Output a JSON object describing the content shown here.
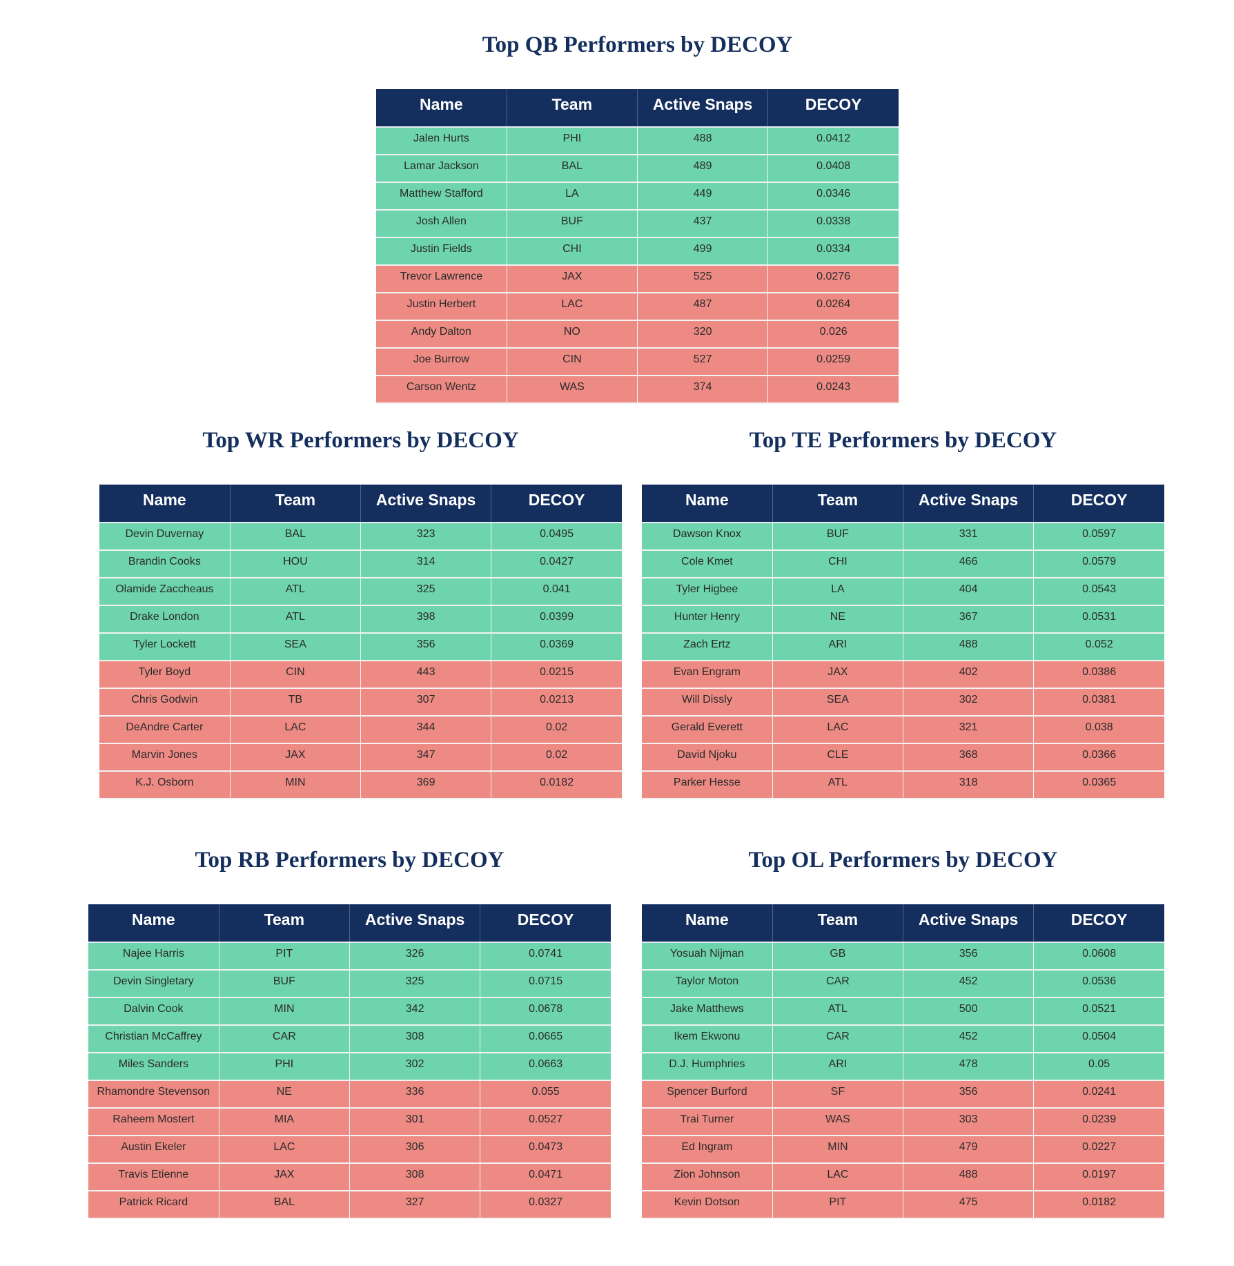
{
  "colors": {
    "header": "#142f5e",
    "top_row": "#6dd4ae",
    "bottom_row": "#ee8a84",
    "title": "#142f5e"
  },
  "chart_data": [
    {
      "type": "table",
      "id": "qb",
      "title": "Top QB Performers by DECOY",
      "columns": [
        "Name",
        "Team",
        "Active Snaps",
        "DECOY"
      ],
      "rows": [
        {
          "group": "top",
          "cells": [
            "Jalen Hurts",
            "PHI",
            "488",
            "0.0412"
          ]
        },
        {
          "group": "top",
          "cells": [
            "Lamar Jackson",
            "BAL",
            "489",
            "0.0408"
          ]
        },
        {
          "group": "top",
          "cells": [
            "Matthew Stafford",
            "LA",
            "449",
            "0.0346"
          ]
        },
        {
          "group": "top",
          "cells": [
            "Josh Allen",
            "BUF",
            "437",
            "0.0338"
          ]
        },
        {
          "group": "top",
          "cells": [
            "Justin Fields",
            "CHI",
            "499",
            "0.0334"
          ]
        },
        {
          "group": "bottom",
          "cells": [
            "Trevor Lawrence",
            "JAX",
            "525",
            "0.0276"
          ]
        },
        {
          "group": "bottom",
          "cells": [
            "Justin Herbert",
            "LAC",
            "487",
            "0.0264"
          ]
        },
        {
          "group": "bottom",
          "cells": [
            "Andy Dalton",
            "NO",
            "320",
            "0.026"
          ]
        },
        {
          "group": "bottom",
          "cells": [
            "Joe Burrow",
            "CIN",
            "527",
            "0.0259"
          ]
        },
        {
          "group": "bottom",
          "cells": [
            "Carson Wentz",
            "WAS",
            "374",
            "0.0243"
          ]
        }
      ]
    },
    {
      "type": "table",
      "id": "wr",
      "title": "Top WR Performers by DECOY",
      "columns": [
        "Name",
        "Team",
        "Active Snaps",
        "DECOY"
      ],
      "rows": [
        {
          "group": "top",
          "cells": [
            "Devin Duvernay",
            "BAL",
            "323",
            "0.0495"
          ]
        },
        {
          "group": "top",
          "cells": [
            "Brandin Cooks",
            "HOU",
            "314",
            "0.0427"
          ]
        },
        {
          "group": "top",
          "cells": [
            "Olamide Zaccheaus",
            "ATL",
            "325",
            "0.041"
          ]
        },
        {
          "group": "top",
          "cells": [
            "Drake London",
            "ATL",
            "398",
            "0.0399"
          ]
        },
        {
          "group": "top",
          "cells": [
            "Tyler Lockett",
            "SEA",
            "356",
            "0.0369"
          ]
        },
        {
          "group": "bottom",
          "cells": [
            "Tyler Boyd",
            "CIN",
            "443",
            "0.0215"
          ]
        },
        {
          "group": "bottom",
          "cells": [
            "Chris Godwin",
            "TB",
            "307",
            "0.0213"
          ]
        },
        {
          "group": "bottom",
          "cells": [
            "DeAndre Carter",
            "LAC",
            "344",
            "0.02"
          ]
        },
        {
          "group": "bottom",
          "cells": [
            "Marvin Jones",
            "JAX",
            "347",
            "0.02"
          ]
        },
        {
          "group": "bottom",
          "cells": [
            "K.J. Osborn",
            "MIN",
            "369",
            "0.0182"
          ]
        }
      ]
    },
    {
      "type": "table",
      "id": "te",
      "title": "Top TE Performers by DECOY",
      "columns": [
        "Name",
        "Team",
        "Active Snaps",
        "DECOY"
      ],
      "rows": [
        {
          "group": "top",
          "cells": [
            "Dawson Knox",
            "BUF",
            "331",
            "0.0597"
          ]
        },
        {
          "group": "top",
          "cells": [
            "Cole Kmet",
            "CHI",
            "466",
            "0.0579"
          ]
        },
        {
          "group": "top",
          "cells": [
            "Tyler Higbee",
            "LA",
            "404",
            "0.0543"
          ]
        },
        {
          "group": "top",
          "cells": [
            "Hunter Henry",
            "NE",
            "367",
            "0.0531"
          ]
        },
        {
          "group": "top",
          "cells": [
            "Zach Ertz",
            "ARI",
            "488",
            "0.052"
          ]
        },
        {
          "group": "bottom",
          "cells": [
            "Evan Engram",
            "JAX",
            "402",
            "0.0386"
          ]
        },
        {
          "group": "bottom",
          "cells": [
            "Will Dissly",
            "SEA",
            "302",
            "0.0381"
          ]
        },
        {
          "group": "bottom",
          "cells": [
            "Gerald Everett",
            "LAC",
            "321",
            "0.038"
          ]
        },
        {
          "group": "bottom",
          "cells": [
            "David Njoku",
            "CLE",
            "368",
            "0.0366"
          ]
        },
        {
          "group": "bottom",
          "cells": [
            "Parker Hesse",
            "ATL",
            "318",
            "0.0365"
          ]
        }
      ]
    },
    {
      "type": "table",
      "id": "rb",
      "title": "Top RB Performers by DECOY",
      "columns": [
        "Name",
        "Team",
        "Active Snaps",
        "DECOY"
      ],
      "rows": [
        {
          "group": "top",
          "cells": [
            "Najee Harris",
            "PIT",
            "326",
            "0.0741"
          ]
        },
        {
          "group": "top",
          "cells": [
            "Devin Singletary",
            "BUF",
            "325",
            "0.0715"
          ]
        },
        {
          "group": "top",
          "cells": [
            "Dalvin Cook",
            "MIN",
            "342",
            "0.0678"
          ]
        },
        {
          "group": "top",
          "cells": [
            "Christian McCaffrey",
            "CAR",
            "308",
            "0.0665"
          ]
        },
        {
          "group": "top",
          "cells": [
            "Miles Sanders",
            "PHI",
            "302",
            "0.0663"
          ]
        },
        {
          "group": "bottom",
          "cells": [
            "Rhamondre Stevenson",
            "NE",
            "336",
            "0.055"
          ]
        },
        {
          "group": "bottom",
          "cells": [
            "Raheem Mostert",
            "MIA",
            "301",
            "0.0527"
          ]
        },
        {
          "group": "bottom",
          "cells": [
            "Austin Ekeler",
            "LAC",
            "306",
            "0.0473"
          ]
        },
        {
          "group": "bottom",
          "cells": [
            "Travis Etienne",
            "JAX",
            "308",
            "0.0471"
          ]
        },
        {
          "group": "bottom",
          "cells": [
            "Patrick Ricard",
            "BAL",
            "327",
            "0.0327"
          ]
        }
      ]
    },
    {
      "type": "table",
      "id": "ol",
      "title": "Top OL Performers by DECOY",
      "columns": [
        "Name",
        "Team",
        "Active Snaps",
        "DECOY"
      ],
      "rows": [
        {
          "group": "top",
          "cells": [
            "Yosuah Nijman",
            "GB",
            "356",
            "0.0608"
          ]
        },
        {
          "group": "top",
          "cells": [
            "Taylor Moton",
            "CAR",
            "452",
            "0.0536"
          ]
        },
        {
          "group": "top",
          "cells": [
            "Jake Matthews",
            "ATL",
            "500",
            "0.0521"
          ]
        },
        {
          "group": "top",
          "cells": [
            "Ikem Ekwonu",
            "CAR",
            "452",
            "0.0504"
          ]
        },
        {
          "group": "top",
          "cells": [
            "D.J. Humphries",
            "ARI",
            "478",
            "0.05"
          ]
        },
        {
          "group": "bottom",
          "cells": [
            "Spencer Burford",
            "SF",
            "356",
            "0.0241"
          ]
        },
        {
          "group": "bottom",
          "cells": [
            "Trai Turner",
            "WAS",
            "303",
            "0.0239"
          ]
        },
        {
          "group": "bottom",
          "cells": [
            "Ed Ingram",
            "MIN",
            "479",
            "0.0227"
          ]
        },
        {
          "group": "bottom",
          "cells": [
            "Zion Johnson",
            "LAC",
            "488",
            "0.0197"
          ]
        },
        {
          "group": "bottom",
          "cells": [
            "Kevin Dotson",
            "PIT",
            "475",
            "0.0182"
          ]
        }
      ]
    }
  ]
}
